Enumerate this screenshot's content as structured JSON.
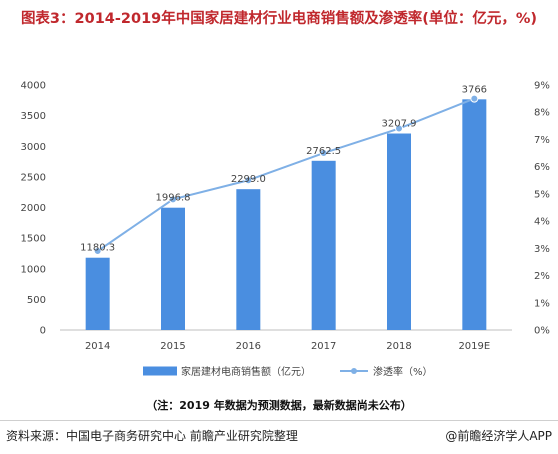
{
  "title": "图表3：2014-2019年中国家居建材行业电商销售额及渗透率(单位：亿元，%)",
  "note": "（注：2019 年数据为预测数据，最新数据尚未公布）",
  "source": "资料来源：中国电子商务研究中心 前瞻产业研究院整理",
  "brand": "@前瞻经济学人APP",
  "colors": {
    "bar": "#4a8ee0",
    "line": "#7fb0e6",
    "title": "#c0282d"
  },
  "chart_data": {
    "type": "bar",
    "categories": [
      "2014",
      "2015",
      "2016",
      "2017",
      "2018",
      "2019E"
    ],
    "series": [
      {
        "name": "家居建材电商销售额（亿元）",
        "type": "bar",
        "axis": "left",
        "values": [
          1180.3,
          1996.8,
          2299.0,
          2762.5,
          3207.9,
          3766
        ],
        "labels": [
          "1180.3",
          "1996.8",
          "2299.0",
          "2762.5",
          "3207.9",
          "3766"
        ]
      },
      {
        "name": "渗透率（%）",
        "type": "line",
        "axis": "right",
        "values": [
          2.9,
          4.8,
          5.5,
          6.5,
          7.4,
          8.5
        ]
      }
    ],
    "y_left": {
      "ylim": [
        0,
        4000
      ],
      "ticks": [
        "0",
        "500",
        "1000",
        "1500",
        "2000",
        "2500",
        "3000",
        "3500",
        "4000"
      ]
    },
    "y_right": {
      "ylim": [
        0,
        9
      ],
      "ticks": [
        "0%",
        "1%",
        "2%",
        "3%",
        "4%",
        "5%",
        "6%",
        "7%",
        "8%",
        "9%"
      ]
    },
    "grid": false,
    "legend": "bottom"
  }
}
